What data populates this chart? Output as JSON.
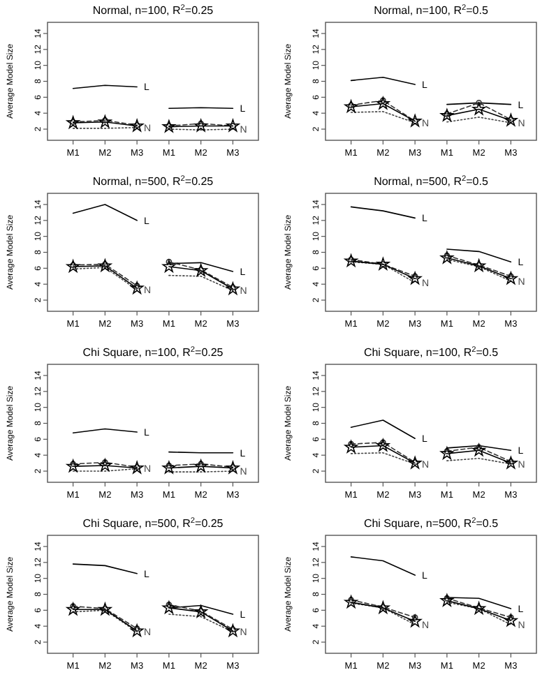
{
  "chart_data": [
    {
      "type": "line",
      "title": "Normal, n=100, R$^{2}$=0.25",
      "ylabel": "Average Model Size",
      "categories": [
        "M1",
        "M2",
        "M3",
        "M1",
        "M2",
        "M3"
      ],
      "ylim": [
        0.6,
        15.4
      ],
      "yticks": [
        2,
        4,
        6,
        8,
        10,
        12,
        14
      ],
      "grid": false,
      "series": [
        {
          "name": "L",
          "color": "#000000",
          "line_style": "solid",
          "marker": "none",
          "values": [
            7.1,
            7.5,
            7.3,
            null,
            null,
            null
          ]
        },
        {
          "name": "L",
          "color": "#000000",
          "line_style": "solid",
          "marker": "none",
          "values": [
            null,
            null,
            null,
            4.6,
            4.7,
            4.6
          ]
        },
        {
          "name": "N",
          "color": "#444444",
          "line_style": "dotted",
          "marker": "none",
          "values": [
            2.1,
            2.1,
            2.2,
            null,
            null,
            null
          ]
        },
        {
          "name": "N",
          "color": "#444444",
          "line_style": "dotted",
          "marker": "none",
          "values": [
            null,
            null,
            null,
            2.0,
            1.9,
            2.0
          ]
        },
        {
          "color": "#333333",
          "line_style": "dashed",
          "marker": "circle",
          "values": [
            2.9,
            3.1,
            2.5,
            null,
            null,
            null
          ]
        },
        {
          "color": "#333333",
          "line_style": "dashed",
          "marker": "circle",
          "values": [
            null,
            null,
            null,
            2.4,
            2.7,
            2.4
          ]
        },
        {
          "color": "#000000",
          "line_style": "solid",
          "marker": "star",
          "values": [
            2.8,
            2.9,
            2.4,
            null,
            null,
            null
          ]
        },
        {
          "color": "#000000",
          "line_style": "solid",
          "marker": "star",
          "values": [
            null,
            null,
            null,
            2.3,
            2.4,
            2.4
          ]
        }
      ]
    },
    {
      "type": "line",
      "title": "Normal, n=100, R$^{2}$=0.5",
      "ylabel": "Average Model Size",
      "categories": [
        "M1",
        "M2",
        "M3",
        "M1",
        "M2",
        "M3"
      ],
      "ylim": [
        0.6,
        15.4
      ],
      "yticks": [
        2,
        4,
        6,
        8,
        10,
        12,
        14
      ],
      "grid": false,
      "series": [
        {
          "name": "L",
          "color": "#000000",
          "line_style": "solid",
          "marker": "none",
          "values": [
            8.1,
            8.5,
            7.6,
            null,
            null,
            null
          ]
        },
        {
          "name": "L",
          "color": "#000000",
          "line_style": "solid",
          "marker": "none",
          "values": [
            null,
            null,
            null,
            5.1,
            5.3,
            5.1
          ]
        },
        {
          "name": "N",
          "color": "#444444",
          "line_style": "dotted",
          "marker": "none",
          "values": [
            4.1,
            4.2,
            2.8,
            null,
            null,
            null
          ]
        },
        {
          "name": "N",
          "color": "#444444",
          "line_style": "dotted",
          "marker": "none",
          "values": [
            null,
            null,
            null,
            2.9,
            3.5,
            2.8
          ]
        },
        {
          "color": "#333333",
          "line_style": "dashed",
          "marker": "circle",
          "values": [
            5.0,
            5.6,
            3.0,
            null,
            null,
            null
          ]
        },
        {
          "color": "#333333",
          "line_style": "dashed",
          "marker": "circle",
          "values": [
            null,
            null,
            null,
            3.9,
            5.3,
            3.2
          ]
        },
        {
          "color": "#000000",
          "line_style": "solid",
          "marker": "star",
          "values": [
            4.8,
            5.2,
            3.0,
            null,
            null,
            null
          ]
        },
        {
          "color": "#000000",
          "line_style": "solid",
          "marker": "star",
          "values": [
            null,
            null,
            null,
            3.7,
            4.5,
            3.1
          ]
        }
      ]
    },
    {
      "type": "line",
      "title": "Normal, n=500, R$^{2}$=0.25",
      "ylabel": "Average Model Size",
      "categories": [
        "M1",
        "M2",
        "M3",
        "M1",
        "M2",
        "M3"
      ],
      "ylim": [
        0.6,
        15.4
      ],
      "yticks": [
        2,
        4,
        6,
        8,
        10,
        12,
        14
      ],
      "grid": false,
      "series": [
        {
          "name": "L",
          "color": "#000000",
          "line_style": "solid",
          "marker": "none",
          "values": [
            12.9,
            14.0,
            12.0,
            null,
            null,
            null
          ]
        },
        {
          "name": "L",
          "color": "#000000",
          "line_style": "solid",
          "marker": "none",
          "values": [
            null,
            null,
            null,
            6.6,
            6.7,
            5.6
          ]
        },
        {
          "name": "N",
          "color": "#444444",
          "line_style": "dotted",
          "marker": "none",
          "values": [
            5.9,
            6.1,
            3.3,
            null,
            null,
            null
          ]
        },
        {
          "name": "N",
          "color": "#444444",
          "line_style": "dotted",
          "marker": "none",
          "values": [
            null,
            null,
            null,
            5.1,
            5.0,
            3.2
          ]
        },
        {
          "color": "#333333",
          "line_style": "dashed",
          "marker": "circle",
          "values": [
            6.4,
            6.5,
            3.8,
            null,
            null,
            null
          ]
        },
        {
          "color": "#333333",
          "line_style": "dashed",
          "marker": "circle",
          "values": [
            null,
            null,
            null,
            6.8,
            5.8,
            3.6
          ]
        },
        {
          "color": "#000000",
          "line_style": "solid",
          "marker": "star",
          "values": [
            6.2,
            6.3,
            3.5,
            null,
            null,
            null
          ]
        },
        {
          "color": "#000000",
          "line_style": "solid",
          "marker": "star",
          "values": [
            null,
            null,
            null,
            6.2,
            5.7,
            3.4
          ]
        }
      ]
    },
    {
      "type": "line",
      "title": "Normal, n=500, R$^{2}$=0.5",
      "ylabel": "Average Model Size",
      "categories": [
        "M1",
        "M2",
        "M3",
        "M1",
        "M2",
        "M3"
      ],
      "ylim": [
        0.6,
        15.4
      ],
      "yticks": [
        2,
        4,
        6,
        8,
        10,
        12,
        14
      ],
      "grid": false,
      "series": [
        {
          "name": "L",
          "color": "#000000",
          "line_style": "solid",
          "marker": "none",
          "values": [
            13.7,
            13.2,
            12.3,
            null,
            null,
            null
          ]
        },
        {
          "name": "L",
          "color": "#000000",
          "line_style": "solid",
          "marker": "none",
          "values": [
            null,
            null,
            null,
            8.4,
            8.1,
            6.8
          ]
        },
        {
          "name": "N",
          "color": "#444444",
          "line_style": "dotted",
          "marker": "none",
          "values": [
            6.8,
            6.5,
            4.2,
            null,
            null,
            null
          ]
        },
        {
          "name": "N",
          "color": "#444444",
          "line_style": "dotted",
          "marker": "none",
          "values": [
            null,
            null,
            null,
            7.1,
            6.2,
            4.4
          ]
        },
        {
          "color": "#333333",
          "line_style": "dashed",
          "marker": "circle",
          "values": [
            7.1,
            6.5,
            5.0,
            null,
            null,
            null
          ]
        },
        {
          "color": "#333333",
          "line_style": "dashed",
          "marker": "circle",
          "values": [
            null,
            null,
            null,
            7.6,
            6.4,
            5.0
          ]
        },
        {
          "color": "#000000",
          "line_style": "solid",
          "marker": "star",
          "values": [
            6.9,
            6.5,
            4.7,
            null,
            null,
            null
          ]
        },
        {
          "color": "#000000",
          "line_style": "solid",
          "marker": "star",
          "values": [
            null,
            null,
            null,
            7.3,
            6.3,
            4.7
          ]
        }
      ]
    },
    {
      "type": "line",
      "title": "Chi Square, n=100, R$^{2}$=0.25",
      "ylabel": "Average Model Size",
      "categories": [
        "M1",
        "M2",
        "M3",
        "M1",
        "M2",
        "M3"
      ],
      "ylim": [
        0.6,
        15.4
      ],
      "yticks": [
        2,
        4,
        6,
        8,
        10,
        12,
        14
      ],
      "grid": false,
      "series": [
        {
          "name": "L",
          "color": "#000000",
          "line_style": "solid",
          "marker": "none",
          "values": [
            6.8,
            7.3,
            6.9,
            null,
            null,
            null
          ]
        },
        {
          "name": "L",
          "color": "#000000",
          "line_style": "solid",
          "marker": "none",
          "values": [
            null,
            null,
            null,
            4.4,
            4.3,
            4.3
          ]
        },
        {
          "name": "N",
          "color": "#444444",
          "line_style": "dotted",
          "marker": "none",
          "values": [
            2.0,
            2.0,
            2.3,
            null,
            null,
            null
          ]
        },
        {
          "name": "N",
          "color": "#444444",
          "line_style": "dotted",
          "marker": "none",
          "values": [
            null,
            null,
            null,
            1.9,
            1.9,
            2.0
          ]
        },
        {
          "color": "#333333",
          "line_style": "dashed",
          "marker": "circle",
          "values": [
            2.9,
            3.1,
            2.5,
            null,
            null,
            null
          ]
        },
        {
          "color": "#333333",
          "line_style": "dashed",
          "marker": "circle",
          "values": [
            null,
            null,
            null,
            2.7,
            2.9,
            2.5
          ]
        },
        {
          "color": "#000000",
          "line_style": "solid",
          "marker": "star",
          "values": [
            2.6,
            2.7,
            2.4,
            null,
            null,
            null
          ]
        },
        {
          "color": "#000000",
          "line_style": "solid",
          "marker": "star",
          "values": [
            null,
            null,
            null,
            2.4,
            2.6,
            2.4
          ]
        }
      ]
    },
    {
      "type": "line",
      "title": "Chi Square, n=100, R$^{2}$=0.5",
      "ylabel": "Average Model Size",
      "categories": [
        "M1",
        "M2",
        "M3",
        "M1",
        "M2",
        "M3"
      ],
      "ylim": [
        0.6,
        15.4
      ],
      "yticks": [
        2,
        4,
        6,
        8,
        10,
        12,
        14
      ],
      "grid": false,
      "series": [
        {
          "name": "L",
          "color": "#000000",
          "line_style": "solid",
          "marker": "none",
          "values": [
            7.5,
            8.4,
            6.1,
            null,
            null,
            null
          ]
        },
        {
          "name": "L",
          "color": "#000000",
          "line_style": "solid",
          "marker": "none",
          "values": [
            null,
            null,
            null,
            4.9,
            5.2,
            4.6
          ]
        },
        {
          "name": "N",
          "color": "#444444",
          "line_style": "dotted",
          "marker": "none",
          "values": [
            4.2,
            4.3,
            2.9,
            null,
            null,
            null
          ]
        },
        {
          "name": "N",
          "color": "#444444",
          "line_style": "dotted",
          "marker": "none",
          "values": [
            null,
            null,
            null,
            3.3,
            3.6,
            2.9
          ]
        },
        {
          "color": "#333333",
          "line_style": "dashed",
          "marker": "circle",
          "values": [
            5.4,
            5.6,
            3.1,
            null,
            null,
            null
          ]
        },
        {
          "color": "#333333",
          "line_style": "dashed",
          "marker": "circle",
          "values": [
            null,
            null,
            null,
            4.5,
            5.0,
            3.2
          ]
        },
        {
          "color": "#000000",
          "line_style": "solid",
          "marker": "star",
          "values": [
            5.0,
            5.2,
            3.0,
            null,
            null,
            null
          ]
        },
        {
          "color": "#000000",
          "line_style": "solid",
          "marker": "star",
          "values": [
            null,
            null,
            null,
            4.2,
            4.6,
            3.0
          ]
        }
      ]
    },
    {
      "type": "line",
      "title": "Chi Square, n=500, R$^{2}$=0.25",
      "ylabel": "Average Model Size",
      "categories": [
        "M1",
        "M2",
        "M3",
        "M1",
        "M2",
        "M3"
      ],
      "ylim": [
        0.6,
        15.4
      ],
      "yticks": [
        2,
        4,
        6,
        8,
        10,
        12,
        14
      ],
      "grid": false,
      "series": [
        {
          "name": "L",
          "color": "#000000",
          "line_style": "solid",
          "marker": "none",
          "values": [
            11.8,
            11.6,
            10.6,
            null,
            null,
            null
          ]
        },
        {
          "name": "L",
          "color": "#000000",
          "line_style": "solid",
          "marker": "none",
          "values": [
            null,
            null,
            null,
            6.3,
            6.6,
            5.5
          ]
        },
        {
          "name": "N",
          "color": "#444444",
          "line_style": "dotted",
          "marker": "none",
          "values": [
            5.8,
            6.0,
            3.3,
            null,
            null,
            null
          ]
        },
        {
          "name": "N",
          "color": "#444444",
          "line_style": "dotted",
          "marker": "none",
          "values": [
            null,
            null,
            null,
            5.5,
            5.2,
            3.3
          ]
        },
        {
          "color": "#333333",
          "line_style": "dashed",
          "marker": "circle",
          "values": [
            6.5,
            6.2,
            3.7,
            null,
            null,
            null
          ]
        },
        {
          "color": "#333333",
          "line_style": "dashed",
          "marker": "circle",
          "values": [
            null,
            null,
            null,
            6.7,
            5.9,
            3.6
          ]
        },
        {
          "color": "#000000",
          "line_style": "solid",
          "marker": "star",
          "values": [
            6.1,
            6.1,
            3.4,
            null,
            null,
            null
          ]
        },
        {
          "color": "#000000",
          "line_style": "solid",
          "marker": "star",
          "values": [
            null,
            null,
            null,
            6.3,
            5.8,
            3.4
          ]
        }
      ]
    },
    {
      "type": "line",
      "title": "Chi Square, n=500, R$^{2}$=0.5",
      "ylabel": "Average Model Size",
      "categories": [
        "M1",
        "M2",
        "M3",
        "M1",
        "M2",
        "M3"
      ],
      "ylim": [
        0.6,
        15.4
      ],
      "yticks": [
        2,
        4,
        6,
        8,
        10,
        12,
        14
      ],
      "grid": false,
      "series": [
        {
          "name": "L",
          "color": "#000000",
          "line_style": "solid",
          "marker": "none",
          "values": [
            12.7,
            12.2,
            10.4,
            null,
            null,
            null
          ]
        },
        {
          "name": "L",
          "color": "#000000",
          "line_style": "solid",
          "marker": "none",
          "values": [
            null,
            null,
            null,
            7.6,
            7.5,
            6.2
          ]
        },
        {
          "name": "N",
          "color": "#444444",
          "line_style": "dotted",
          "marker": "none",
          "values": [
            6.9,
            6.3,
            4.2,
            null,
            null,
            null
          ]
        },
        {
          "name": "N",
          "color": "#444444",
          "line_style": "dotted",
          "marker": "none",
          "values": [
            null,
            null,
            null,
            7.0,
            6.2,
            4.2
          ]
        },
        {
          "color": "#333333",
          "line_style": "dashed",
          "marker": "circle",
          "values": [
            7.3,
            6.4,
            5.1,
            null,
            null,
            null
          ]
        },
        {
          "color": "#333333",
          "line_style": "dashed",
          "marker": "circle",
          "values": [
            null,
            null,
            null,
            7.5,
            6.3,
            5.1
          ]
        },
        {
          "color": "#000000",
          "line_style": "solid",
          "marker": "star",
          "values": [
            7.0,
            6.3,
            4.6,
            null,
            null,
            null
          ]
        },
        {
          "color": "#000000",
          "line_style": "solid",
          "marker": "star",
          "values": [
            null,
            null,
            null,
            7.2,
            6.2,
            4.7
          ]
        }
      ]
    }
  ]
}
